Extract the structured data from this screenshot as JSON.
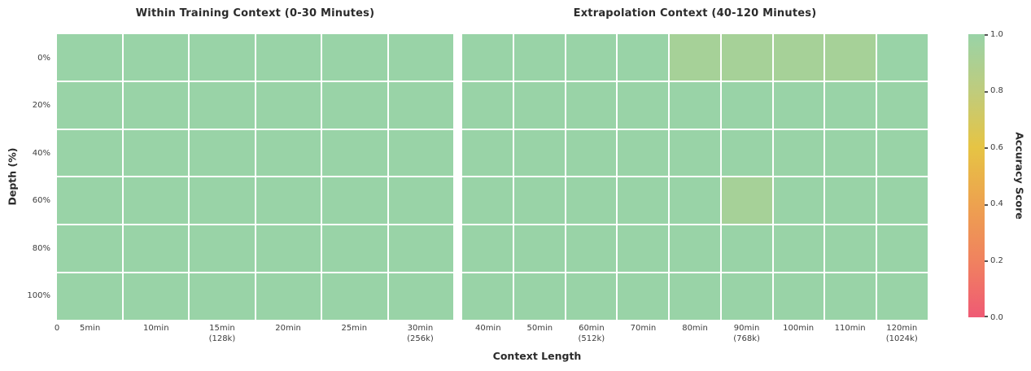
{
  "figure": {
    "background": "#ffffff",
    "text_color": "#2b2b2b",
    "grid_line_color": "#ffffff"
  },
  "axes": {
    "xlabel": "Context Length",
    "ylabel": "Depth (%)"
  },
  "chart_data": [
    {
      "type": "heatmap",
      "panel": "left",
      "title": "Within Training Context (0-30 Minutes)",
      "x_origin_tick_label": "0",
      "columns": [
        "5min",
        "10min",
        "15min\n(128k)",
        "20min",
        "25min",
        "30min\n(256k)"
      ],
      "rows": [
        "0%",
        "20%",
        "40%",
        "60%",
        "80%",
        "100%"
      ],
      "value_range": [
        0.0,
        1.0
      ],
      "values": [
        [
          1.0,
          1.0,
          1.0,
          1.0,
          1.0,
          1.0
        ],
        [
          1.0,
          1.0,
          1.0,
          1.0,
          1.0,
          1.0
        ],
        [
          1.0,
          1.0,
          1.0,
          1.0,
          1.0,
          1.0
        ],
        [
          1.0,
          1.0,
          1.0,
          1.0,
          1.0,
          1.0
        ],
        [
          1.0,
          1.0,
          1.0,
          1.0,
          1.0,
          1.0
        ],
        [
          1.0,
          1.0,
          1.0,
          1.0,
          1.0,
          1.0
        ]
      ]
    },
    {
      "type": "heatmap",
      "panel": "right",
      "title": "Extrapolation Context (40-120 Minutes)",
      "columns": [
        "40min",
        "50min",
        "60min\n(512k)",
        "70min",
        "80min",
        "90min\n(768k)",
        "100min",
        "110min",
        "120min\n(1024k)"
      ],
      "rows": [
        "0%",
        "20%",
        "40%",
        "60%",
        "80%",
        "100%"
      ],
      "value_range": [
        0.0,
        1.0
      ],
      "values": [
        [
          1.0,
          1.0,
          1.0,
          1.0,
          0.93,
          0.93,
          0.93,
          0.93,
          1.0
        ],
        [
          1.0,
          1.0,
          1.0,
          1.0,
          1.0,
          1.0,
          1.0,
          1.0,
          1.0
        ],
        [
          1.0,
          1.0,
          1.0,
          1.0,
          1.0,
          1.0,
          1.0,
          1.0,
          1.0
        ],
        [
          1.0,
          1.0,
          1.0,
          1.0,
          1.0,
          0.93,
          1.0,
          1.0,
          1.0
        ],
        [
          1.0,
          1.0,
          1.0,
          1.0,
          1.0,
          1.0,
          1.0,
          1.0,
          1.0
        ],
        [
          1.0,
          1.0,
          1.0,
          1.0,
          1.0,
          1.0,
          1.0,
          1.0,
          1.0
        ]
      ]
    }
  ],
  "colorbar": {
    "label": "Accuracy Score",
    "tick_labels": [
      "1.0",
      "0.8",
      "0.6",
      "0.4",
      "0.2",
      "0.0"
    ],
    "tick_values": [
      1.0,
      0.8,
      0.6,
      0.4,
      0.2,
      0.0
    ],
    "gradient_stops": [
      {
        "value": 0.0,
        "color": "#ef5a74"
      },
      {
        "value": 0.2,
        "color": "#f0825f"
      },
      {
        "value": 0.4,
        "color": "#eda24f"
      },
      {
        "value": 0.6,
        "color": "#e6c444"
      },
      {
        "value": 0.8,
        "color": "#bfcc7d"
      },
      {
        "value": 1.0,
        "color": "#99d3a7"
      }
    ]
  }
}
